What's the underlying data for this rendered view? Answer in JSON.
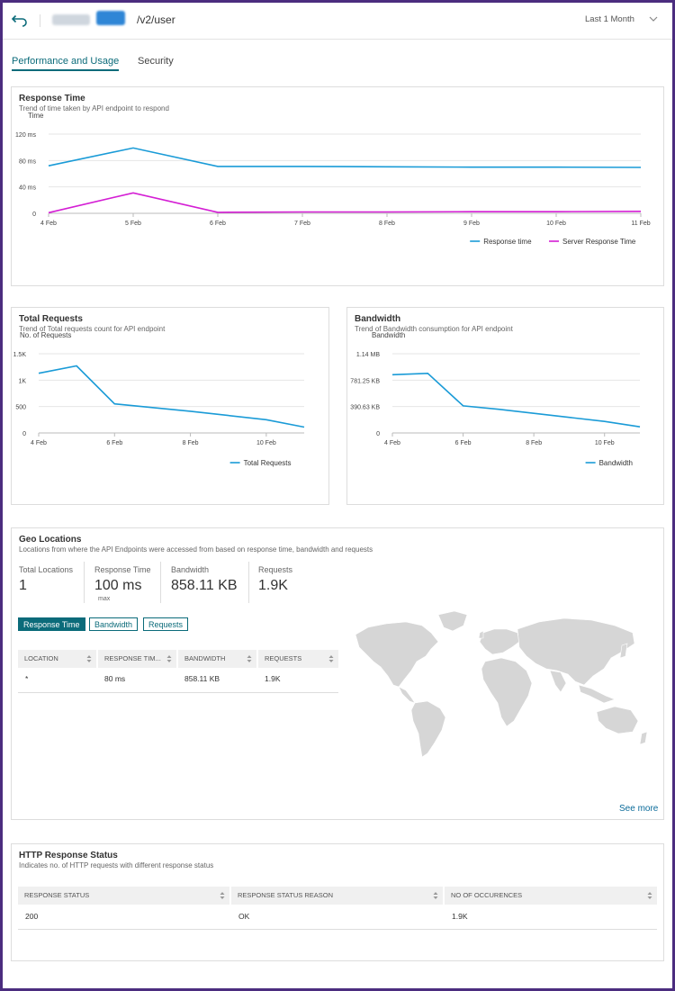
{
  "header": {
    "path": "/v2/user",
    "range": "Last 1 Month"
  },
  "tabs": [
    {
      "label": "Performance and Usage"
    },
    {
      "label": "Security"
    }
  ],
  "response_card": {
    "title": "Response Time",
    "subtitle": "Trend of time taken by API endpoint to respond"
  },
  "requests_card": {
    "title": "Total Requests",
    "subtitle": "Trend of Total requests count for API endpoint"
  },
  "bandwidth_card": {
    "title": "Bandwidth",
    "subtitle": "Trend of Bandwidth consumption for API endpoint"
  },
  "chart_data": [
    {
      "type": "line",
      "ylabel": "Time",
      "x": [
        "4 Feb",
        "5 Feb",
        "6 Feb",
        "7 Feb",
        "8 Feb",
        "9 Feb",
        "10 Feb",
        "11 Feb"
      ],
      "yticks": [
        "0",
        "40 ms",
        "80 ms",
        "120 ms"
      ],
      "ylim": [
        0,
        120
      ],
      "series": [
        {
          "name": "Response time",
          "color": "#1a9bd7",
          "values": [
            72,
            99,
            71,
            71,
            70.5,
            70,
            70,
            69.5
          ]
        },
        {
          "name": "Server Response Time",
          "color": "#d41ed4",
          "values": [
            1,
            31,
            1.5,
            2,
            2,
            2.5,
            2.5,
            3
          ]
        }
      ],
      "grid": true,
      "legend": "bottom-right"
    },
    {
      "type": "line",
      "ylabel": "No. of Requests",
      "x": [
        "4 Feb",
        "5 Feb",
        "6 Feb",
        "7 Feb",
        "8 Feb",
        "9 Feb",
        "10 Feb",
        "11 Feb"
      ],
      "xticks": [
        "4 Feb",
        "6 Feb",
        "8 Feb",
        "10 Feb"
      ],
      "yticks": [
        "0",
        "500",
        "1K",
        "1.5K"
      ],
      "ylim": [
        0,
        1500
      ],
      "series": [
        {
          "name": "Total Requests",
          "color": "#1a9bd7",
          "values": [
            1130,
            1270,
            550,
            480,
            410,
            330,
            250,
            110
          ]
        }
      ],
      "grid": true,
      "legend": "bottom-right"
    },
    {
      "type": "line",
      "ylabel": "Bandwidth",
      "x": [
        "4 Feb",
        "5 Feb",
        "6 Feb",
        "7 Feb",
        "8 Feb",
        "9 Feb",
        "10 Feb",
        "11 Feb"
      ],
      "xticks": [
        "4 Feb",
        "6 Feb",
        "8 Feb",
        "10 Feb"
      ],
      "yticks": [
        "0",
        "390.63 KB",
        "781.25 KB",
        "1.14 MB"
      ],
      "ylim": [
        0,
        1170
      ],
      "series": [
        {
          "name": "Bandwidth",
          "color": "#1a9bd7",
          "values": [
            860,
            880,
            400,
            350,
            290,
            230,
            170,
            90
          ]
        }
      ],
      "grid": true,
      "legend": "bottom-right"
    }
  ],
  "geo": {
    "title": "Geo Locations",
    "subtitle": "Locations from where the API Endpoints were accessed from based on response time, bandwidth and requests",
    "stats": [
      {
        "label": "Total Locations",
        "value": "1"
      },
      {
        "label": "Response Time",
        "value": "100 ms",
        "note": "max"
      },
      {
        "label": "Bandwidth",
        "value": "858.11 KB"
      },
      {
        "label": "Requests",
        "value": "1.9K"
      }
    ],
    "buttons": [
      "Response Time",
      "Bandwidth",
      "Requests"
    ],
    "columns": [
      "LOCATION",
      "RESPONSE TIM...",
      "BANDWIDTH",
      "REQUESTS"
    ],
    "rows": [
      [
        "*",
        "80 ms",
        "858.11 KB",
        "1.9K"
      ]
    ],
    "see_more": "See more"
  },
  "http": {
    "title": "HTTP Response Status",
    "subtitle": "Indicates no. of HTTP requests with different response status",
    "columns": [
      "RESPONSE STATUS",
      "RESPONSE STATUS REASON",
      "NO OF OCCURENCES"
    ],
    "rows": [
      [
        "200",
        "OK",
        "1.9K"
      ]
    ]
  },
  "colors": {
    "accent": "#0b6b7a",
    "line_blue": "#1a9bd7",
    "line_magenta": "#d41ed4",
    "map": "#d6d6d6"
  }
}
